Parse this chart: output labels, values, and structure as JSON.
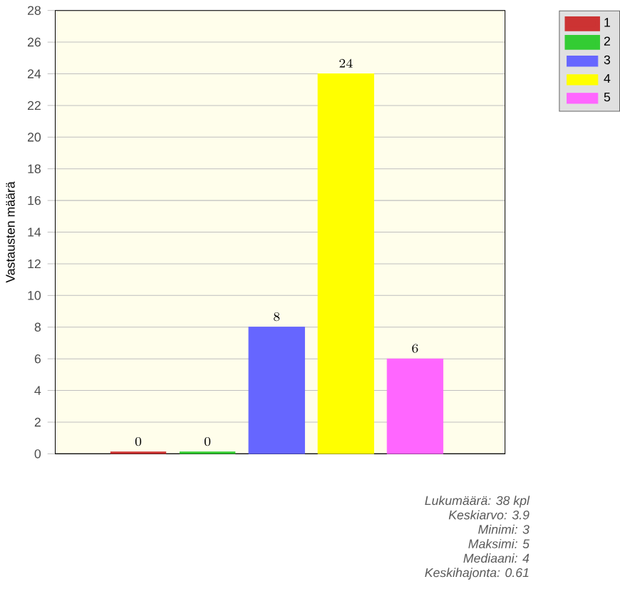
{
  "chart_data": {
    "type": "bar",
    "ylabel": "Vastausten määrä",
    "categories": [
      null,
      null,
      null,
      null,
      null
    ],
    "series": [
      {
        "name": "1",
        "color": "#cc3333",
        "values": [
          0,
          null,
          null,
          null,
          null
        ]
      },
      {
        "name": "2",
        "color": "#33cc33",
        "values": [
          null,
          0,
          null,
          null,
          null
        ]
      },
      {
        "name": "3",
        "color": "#6666ff",
        "values": [
          null,
          null,
          8,
          null,
          null
        ]
      },
      {
        "name": "4",
        "color": "#ffff00",
        "values": [
          null,
          null,
          null,
          24,
          null
        ]
      },
      {
        "name": "5",
        "color": "#ff66ff",
        "values": [
          null,
          null,
          null,
          null,
          6
        ]
      }
    ],
    "ylim": [
      0,
      28
    ],
    "yticks": [
      0,
      2,
      4,
      6,
      8,
      10,
      12,
      14,
      16,
      18,
      20,
      22,
      24,
      26,
      28
    ],
    "grid": "y",
    "legend": "top right",
    "data_labels": true,
    "annotations": [
      "Lukumäärä: 38 kpl",
      "Keskiarvo: 3.9",
      "Minimi: 3",
      "Maksimi: 5",
      "Mediaani: 4",
      "Keskihajonta: 0.61"
    ]
  }
}
